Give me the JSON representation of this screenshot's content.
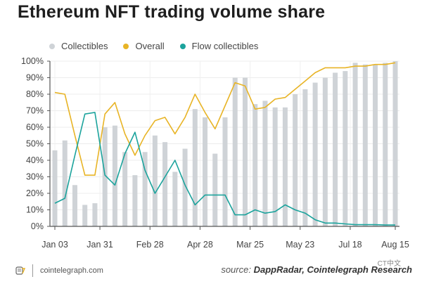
{
  "chart_data": {
    "type": "bar",
    "title": "Ethereum NFT trading volume share",
    "xlabel": "",
    "ylabel": "",
    "ylim": [
      0,
      100
    ],
    "yticks": [
      "0%",
      "10%",
      "20%",
      "30%",
      "40%",
      "50%",
      "60%",
      "70%",
      "80%",
      "90%",
      "100%"
    ],
    "xtick_labels": [
      {
        "index": 0,
        "label": "Jan 03"
      },
      {
        "index": 4.5,
        "label": "Jan 31"
      },
      {
        "index": 9.5,
        "label": "Feb 28"
      },
      {
        "index": 14.5,
        "label": "Apr 28"
      },
      {
        "index": 19.5,
        "label": "Mar 25"
      },
      {
        "index": 24.5,
        "label": "May 23"
      },
      {
        "index": 29.5,
        "label": "Jul 18"
      },
      {
        "index": 34,
        "label": "Aug 15"
      }
    ],
    "grid": true,
    "legend_position": "top-left",
    "n_points": 35,
    "series": [
      {
        "name": "Collectibles",
        "kind": "bar",
        "color": "#cfd3d7",
        "values": [
          46,
          52,
          25,
          13,
          14,
          60,
          61,
          45,
          31,
          45,
          55,
          51,
          33,
          47,
          71,
          66,
          44,
          66,
          90,
          90,
          74,
          76,
          72,
          72,
          80,
          83,
          87,
          90,
          93,
          94,
          99,
          98,
          98,
          99,
          100
        ]
      },
      {
        "name": "Overall",
        "kind": "line",
        "color": "#e8b426",
        "values": [
          81,
          80,
          55,
          31,
          31,
          68,
          75,
          56,
          43,
          55,
          64,
          66,
          56,
          66,
          80,
          69,
          59,
          73,
          87,
          85,
          71,
          72,
          77,
          78,
          83,
          88,
          93,
          96,
          96,
          96,
          97,
          97,
          98,
          98,
          99
        ]
      },
      {
        "name": "Flow collectibles",
        "kind": "line",
        "color": "#1ba39c",
        "values": [
          14,
          17,
          43,
          68,
          69,
          31,
          25,
          44,
          57,
          34,
          20,
          30,
          40,
          25,
          13,
          19,
          19,
          19,
          7,
          7,
          10,
          8,
          9,
          13,
          10,
          8,
          4,
          2,
          2,
          1.5,
          1,
          1,
          1,
          0.8,
          0.8
        ]
      }
    ]
  },
  "footer": {
    "site": "cointelegraph.com",
    "source_prefix": "source:",
    "source_text": "DappRadar, Cointelegraph Research"
  },
  "watermark": "CT中文"
}
